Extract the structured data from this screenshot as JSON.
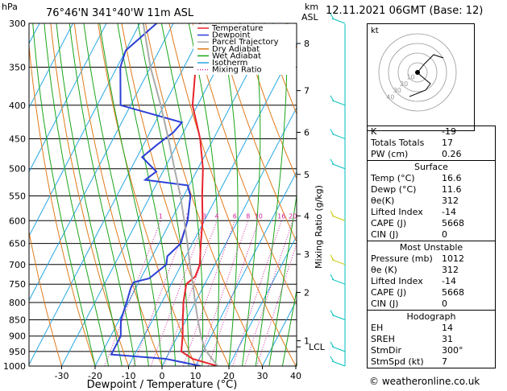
{
  "header": {
    "location": "76°46'N  341°40'W  11m  ASL",
    "datetime": "12.11.2021  06GMT  (Base: 12)",
    "left_unit": "hPa",
    "right_unit_top": "km",
    "right_unit_bottom": "ASL"
  },
  "chart_data": {
    "type": "line",
    "title": "Skew-T log-P diagram",
    "xlabel": "Dewpoint / Temperature (°C)",
    "ylabel": "hPa",
    "right_axis_label": "Mixing Ratio (g/kg)",
    "xlim": [
      -35,
      40
    ],
    "ylim": [
      1000,
      300
    ],
    "x_ticks": [
      -30,
      -20,
      -10,
      0,
      10,
      20,
      30,
      40
    ],
    "pressure_levels": [
      300,
      350,
      400,
      450,
      500,
      550,
      600,
      650,
      700,
      750,
      800,
      850,
      900,
      950,
      1000
    ],
    "km_ticks": [
      {
        "km": "1",
        "p": 915
      },
      {
        "km": "2",
        "p": 772
      },
      {
        "km": "3",
        "p": 675
      },
      {
        "km": "4",
        "p": 590
      },
      {
        "km": "5",
        "p": 510
      },
      {
        "km": "6",
        "p": 440
      },
      {
        "km": "7",
        "p": 380
      },
      {
        "km": "8",
        "p": 322
      }
    ],
    "lcl": {
      "label": "LCL",
      "p": 935
    },
    "mixing_ratio_labels": [
      "1",
      "2",
      "3",
      "4",
      "6",
      "8",
      "10",
      "16",
      "20",
      "25"
    ],
    "legend": [
      {
        "name": "Temperature",
        "color": "#e8232b",
        "style": "solid"
      },
      {
        "name": "Dewpoint",
        "color": "#2b3fd6",
        "style": "solid"
      },
      {
        "name": "Parcel Trajectory",
        "color": "#aaaaaa",
        "style": "solid"
      },
      {
        "name": "Dry Adiabat",
        "color": "#e07a1b",
        "style": "solid"
      },
      {
        "name": "Wet Adiabat",
        "color": "#1aa51a",
        "style": "solid"
      },
      {
        "name": "Isotherm",
        "color": "#26a7e3",
        "style": "solid"
      },
      {
        "name": "Mixing Ratio",
        "color": "#d0209a",
        "style": "dotted"
      }
    ],
    "series": [
      {
        "name": "Temperature",
        "points": [
          [
            1000,
            16.6
          ],
          [
            975,
            8.0
          ],
          [
            950,
            3.5
          ],
          [
            900,
            1.5
          ],
          [
            850,
            -1.0
          ],
          [
            800,
            -3.5
          ],
          [
            750,
            -5.5
          ],
          [
            730,
            -4.0
          ],
          [
            700,
            -4.5
          ],
          [
            650,
            -7.5
          ],
          [
            600,
            -10.5
          ],
          [
            550,
            -14.5
          ],
          [
            500,
            -18.5
          ],
          [
            450,
            -24.0
          ],
          [
            400,
            -31.5
          ],
          [
            350,
            -36.5
          ],
          [
            300,
            -42.0
          ]
        ]
      },
      {
        "name": "Dewpoint",
        "points": [
          [
            1000,
            11.6
          ],
          [
            975,
            0.0
          ],
          [
            960,
            -17.0
          ],
          [
            900,
            -17.0
          ],
          [
            850,
            -19.5
          ],
          [
            800,
            -20.5
          ],
          [
            760,
            -21.5
          ],
          [
            745,
            -21.5
          ],
          [
            735,
            -17.5
          ],
          [
            700,
            -14.5
          ],
          [
            680,
            -15.5
          ],
          [
            650,
            -13.5
          ],
          [
            600,
            -15.0
          ],
          [
            550,
            -18.0
          ],
          [
            530,
            -20.5
          ],
          [
            520,
            -34.0
          ],
          [
            505,
            -32.0
          ],
          [
            480,
            -38.5
          ],
          [
            460,
            -36.0
          ],
          [
            440,
            -33.0
          ],
          [
            425,
            -32.0
          ],
          [
            400,
            -53.0
          ],
          [
            350,
            -59.0
          ],
          [
            330,
            -60.0
          ],
          [
            300,
            -55.0
          ]
        ]
      },
      {
        "name": "Parcel Trajectory",
        "points": [
          [
            1000,
            16.6
          ],
          [
            950,
            11.0
          ],
          [
            935,
            9.6
          ],
          [
            900,
            7.0
          ],
          [
            850,
            3.5
          ],
          [
            800,
            0.0
          ],
          [
            750,
            -3.5
          ],
          [
            700,
            -7.5
          ],
          [
            650,
            -11.5
          ],
          [
            600,
            -16.0
          ],
          [
            550,
            -21.0
          ],
          [
            500,
            -27.0
          ],
          [
            450,
            -33.5
          ],
          [
            400,
            -41.0
          ],
          [
            350,
            -50.0
          ],
          [
            300,
            -59.0
          ]
        ]
      }
    ]
  },
  "hodograph": {
    "label": "kt",
    "ring_labels": [
      "10",
      "20",
      "30",
      "40"
    ]
  },
  "indices": {
    "k_label": "K",
    "k_value": "-19",
    "tt_label": "Totals Totals",
    "tt_value": "17",
    "pw_label": "PW (cm)",
    "pw_value": "0.26"
  },
  "surface": {
    "title": "Surface",
    "temp_label": "Temp (°C)",
    "temp_value": "16.6",
    "dewp_label": "Dewp (°C)",
    "dewp_value": "11.6",
    "theta_label": "θe(K)",
    "theta_value": "312",
    "li_label": "Lifted Index",
    "li_value": "-14",
    "cape_label": "CAPE (J)",
    "cape_value": "5668",
    "cin_label": "CIN (J)",
    "cin_value": "0"
  },
  "most_unstable": {
    "title": "Most Unstable",
    "pressure_label": "Pressure (mb)",
    "pressure_value": "1012",
    "theta_label": "θe (K)",
    "theta_value": "312",
    "li_label": "Lifted Index",
    "li_value": "-14",
    "cape_label": "CAPE (J)",
    "cape_value": "5668",
    "cin_label": "CIN (J)",
    "cin_value": "0"
  },
  "hodo_table": {
    "title": "Hodograph",
    "eh_label": "EH",
    "eh_value": "14",
    "sreh_label": "SREH",
    "sreh_value": "31",
    "stmdir_label": "StmDir",
    "stmdir_value": "300°",
    "stmspd_label": "StmSpd (kt)",
    "stmspd_value": "7"
  },
  "footer": {
    "copyright": "© weatheronline.co.uk"
  }
}
